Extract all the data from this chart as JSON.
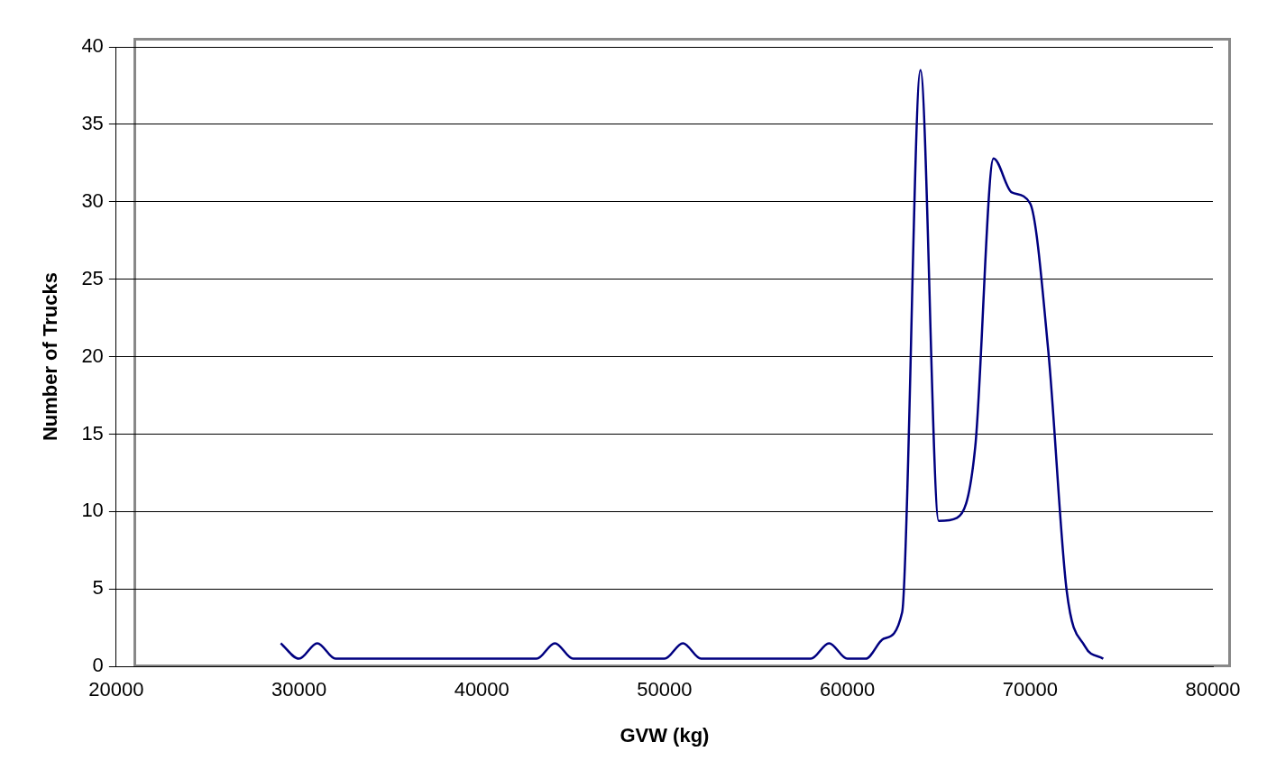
{
  "chart_data": {
    "type": "line",
    "xlabel": "GVW (kg)",
    "ylabel": "Number of Trucks",
    "x": [
      29000,
      30000,
      31000,
      32000,
      33000,
      34000,
      35000,
      36000,
      37000,
      38000,
      39000,
      40000,
      41000,
      42000,
      43000,
      44000,
      45000,
      46000,
      47000,
      48000,
      49000,
      50000,
      51000,
      52000,
      53000,
      54000,
      55000,
      56000,
      57000,
      58000,
      59000,
      60000,
      61000,
      62000,
      63000,
      64000,
      65000,
      66000,
      67000,
      68000,
      69000,
      70000,
      71000,
      72000,
      73000,
      74000
    ],
    "series": [
      {
        "color": "#000080",
        "values": [
          1.5,
          0.5,
          1.5,
          0.5,
          0.5,
          0.5,
          0.5,
          0.5,
          0.5,
          0.5,
          0.5,
          0.5,
          0.5,
          0.5,
          0.5,
          1.5,
          0.5,
          0.5,
          0.5,
          0.5,
          0.5,
          0.5,
          1.5,
          0.5,
          0.5,
          0.5,
          0.5,
          0.5,
          0.5,
          0.5,
          1.5,
          0.5,
          0.5,
          1.8,
          3.5,
          38.5,
          9.4,
          9.6,
          14.2,
          32.8,
          30.6,
          29.9,
          20.3,
          4.9,
          1.3,
          0.5
        ]
      }
    ],
    "xlim": [
      20000,
      80000
    ],
    "xticks": [
      20000,
      30000,
      40000,
      50000,
      60000,
      70000,
      80000
    ],
    "ylim": [
      0,
      40
    ],
    "yticks": [
      0,
      5,
      10,
      15,
      20,
      25,
      30,
      35,
      40
    ],
    "grid": "y",
    "legend": false,
    "marker": "none",
    "line_style": "solid"
  }
}
